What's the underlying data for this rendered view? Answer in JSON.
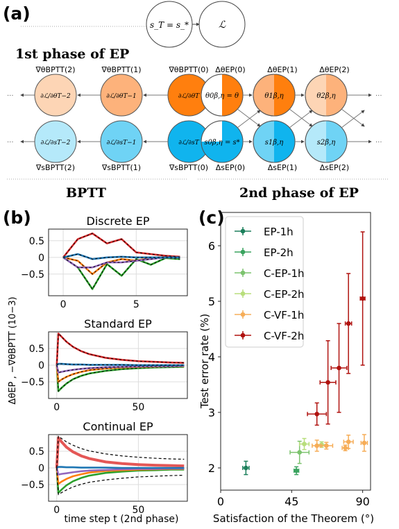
{
  "panels": {
    "a": {
      "label": "(a)",
      "phase1_title": "1st phase of EP",
      "phase1_nodes": [
        "s_T = s_*",
        "ℒ"
      ],
      "bptt_title": "BPTT",
      "phase2_title": "2nd phase of EP",
      "bptt_theta_labels": [
        "∇θBPTT(2)",
        "∇θBPTT(1)",
        "∇θBPTT(0)"
      ],
      "bptt_theta_nodes": [
        "∂ℒ/∂θT−2",
        "∂ℒ/∂θT−1",
        "∂ℒ/∂θT"
      ],
      "bptt_s_labels": [
        "∇sBPTT(2)",
        "∇sBPTT(1)",
        "∇sBPTT(0)"
      ],
      "bptt_s_nodes": [
        "∂ℒ/∂sT−2",
        "∂ℒ/∂sT−1",
        "∂ℒ/∂sT"
      ],
      "ep_theta_labels": [
        "ΔθEP(0)",
        "ΔθEP(1)",
        "ΔθEP(2)"
      ],
      "ep_theta_nodes": [
        "θ0β,η = θ",
        "θ1β,η",
        "θ2β,η"
      ],
      "ep_s_labels": [
        "ΔsEP(0)",
        "ΔsEP(1)",
        "ΔsEP(2)"
      ],
      "ep_s_nodes": [
        "s0β,η = s*",
        "s1β,η",
        "s2β,η"
      ],
      "ellipsis": "···",
      "colors": {
        "orange_dark": "#ff7f0e",
        "orange_mid": "#fdb27b",
        "orange_light": "#fdd5b5",
        "blue_dark": "#10b4ee",
        "blue_mid": "#6fd3f5",
        "blue_light": "#b5e9fa"
      }
    },
    "b": {
      "label": "(b)",
      "ylabel": "ΔθEP , −∇θBPTT (10−3)",
      "xlabel": "time step t (2nd phase)",
      "subplots": [
        {
          "title": "Discrete EP",
          "yticks": [
            "0.5",
            "0",
            "−0.5"
          ],
          "xticks": [
            "0",
            "5"
          ]
        },
        {
          "title": "Standard EP",
          "yticks": [
            "0.5",
            "0",
            "−0.5"
          ],
          "xticks": [
            "0",
            "50"
          ]
        },
        {
          "title": "Continual EP",
          "yticks": [
            "0.5",
            "0",
            "−0.5"
          ],
          "xticks": [
            "0",
            "50"
          ]
        }
      ]
    },
    "c": {
      "label": "(c)",
      "xlabel": "Satisfaction of the Theorem (°)",
      "ylabel": "Test error rate (%)"
    }
  },
  "chart_data": [
    {
      "type": "line",
      "title": "Discrete EP",
      "xlim": [
        -1,
        8.5
      ],
      "ylim": [
        -1.15,
        0.85
      ],
      "yticks": [
        0.5,
        0,
        -0.5
      ],
      "xticks": [
        0,
        5
      ],
      "grid": true,
      "series": [
        {
          "color": "#d62728",
          "x": [
            0,
            1,
            2,
            3,
            4,
            5,
            6,
            7,
            8
          ],
          "y": [
            0,
            0.55,
            0.72,
            0.42,
            0.55,
            0.15,
            0.1,
            0.05,
            0.02
          ]
        },
        {
          "color": "#2ca02c",
          "x": [
            0,
            1,
            2,
            3,
            4,
            5,
            6,
            7,
            8
          ],
          "y": [
            0,
            -0.3,
            -0.95,
            -0.2,
            -0.55,
            -0.05,
            -0.22,
            -0.02,
            -0.05
          ]
        },
        {
          "color": "#ff7f0e",
          "x": [
            0,
            1,
            2,
            3,
            4,
            5,
            6,
            7,
            8
          ],
          "y": [
            0,
            -0.1,
            -0.5,
            -0.15,
            -0.05,
            -0.1,
            0,
            0,
            0
          ]
        },
        {
          "color": "#9467bd",
          "x": [
            0,
            1,
            2,
            3,
            4,
            5,
            6,
            7,
            8
          ],
          "y": [
            0,
            -0.3,
            -0.3,
            -0.15,
            -0.15,
            -0.1,
            -0.05,
            0,
            0
          ]
        },
        {
          "color": "#1f77b4",
          "x": [
            0,
            1,
            2,
            3,
            4,
            5,
            6,
            7,
            8
          ],
          "y": [
            0,
            0.1,
            -0.05,
            0,
            0.02,
            0,
            0,
            0,
            0
          ]
        }
      ]
    },
    {
      "type": "line",
      "title": "Standard EP",
      "xlim": [
        -5,
        80
      ],
      "ylim": [
        -1.0,
        1.0
      ],
      "yticks": [
        0.5,
        0,
        -0.5
      ],
      "xticks": [
        0,
        50
      ],
      "grid": true,
      "series": [
        {
          "color": "#d62728",
          "x": [
            0,
            1,
            3,
            6,
            10,
            15,
            20,
            30,
            40,
            50,
            60,
            70,
            78
          ],
          "y": [
            0,
            0.95,
            0.85,
            0.7,
            0.55,
            0.42,
            0.33,
            0.22,
            0.16,
            0.12,
            0.1,
            0.08,
            0.07
          ]
        },
        {
          "color": "#2ca02c",
          "x": [
            0,
            1,
            3,
            6,
            10,
            15,
            20,
            30,
            40,
            50,
            60,
            70,
            78
          ],
          "y": [
            0,
            -0.78,
            -0.68,
            -0.55,
            -0.42,
            -0.32,
            -0.25,
            -0.17,
            -0.12,
            -0.09,
            -0.07,
            -0.06,
            -0.05
          ]
        },
        {
          "color": "#ff7f0e",
          "x": [
            0,
            1,
            3,
            6,
            10,
            15,
            20,
            30,
            40,
            50,
            60,
            70,
            78
          ],
          "y": [
            0,
            -0.5,
            -0.43,
            -0.35,
            -0.27,
            -0.2,
            -0.15,
            -0.1,
            -0.07,
            -0.05,
            -0.04,
            -0.03,
            -0.03
          ]
        },
        {
          "color": "#9467bd",
          "x": [
            0,
            1,
            3,
            6,
            10,
            15,
            20,
            30,
            40,
            50,
            60,
            70,
            78
          ],
          "y": [
            0,
            -0.22,
            -0.2,
            -0.17,
            -0.14,
            -0.11,
            -0.09,
            -0.06,
            -0.05,
            -0.04,
            -0.03,
            -0.03,
            -0.02
          ]
        },
        {
          "color": "#1f77b4",
          "x": [
            0,
            1,
            3,
            6,
            10,
            15,
            20,
            30,
            40,
            50,
            60,
            70,
            78
          ],
          "y": [
            0,
            0.04,
            0.04,
            0.03,
            0.02,
            0.02,
            0.01,
            0.01,
            0.01,
            0,
            0,
            0,
            0
          ]
        }
      ]
    },
    {
      "type": "line",
      "title": "Continual EP",
      "xlim": [
        -5,
        80
      ],
      "ylim": [
        -1.0,
        1.0
      ],
      "yticks": [
        0.5,
        0,
        -0.5
      ],
      "xticks": [
        0,
        50
      ],
      "grid": true,
      "series": [
        {
          "color": "#e45756",
          "x": [
            0,
            1,
            3,
            6,
            10,
            15,
            20,
            30,
            40,
            50,
            60,
            70,
            78
          ],
          "y": [
            0,
            0.9,
            0.78,
            0.62,
            0.48,
            0.36,
            0.28,
            0.18,
            0.13,
            0.1,
            0.08,
            0.07,
            0.06
          ]
        },
        {
          "color": "#2ca02c",
          "x": [
            0,
            1,
            3,
            6,
            10,
            15,
            20,
            30,
            40,
            50,
            60,
            70,
            78
          ],
          "y": [
            0,
            -0.75,
            -0.65,
            -0.52,
            -0.4,
            -0.3,
            -0.23,
            -0.15,
            -0.11,
            -0.08,
            -0.07,
            -0.05,
            -0.05
          ]
        },
        {
          "color": "#ff7f0e",
          "x": [
            0,
            1,
            3,
            6,
            10,
            15,
            20,
            30,
            40,
            50,
            60,
            70,
            78
          ],
          "y": [
            0,
            -0.48,
            -0.41,
            -0.33,
            -0.25,
            -0.19,
            -0.14,
            -0.09,
            -0.07,
            -0.05,
            -0.04,
            -0.03,
            -0.03
          ]
        },
        {
          "color": "#9467bd",
          "x": [
            0,
            1,
            3,
            6,
            10,
            15,
            20,
            30,
            40,
            50,
            60,
            70,
            78
          ],
          "y": [
            0,
            -0.2,
            -0.18,
            -0.16,
            -0.13,
            -0.1,
            -0.08,
            -0.06,
            -0.04,
            -0.03,
            -0.03,
            -0.02,
            -0.02
          ]
        },
        {
          "color": "#1f77b4",
          "x": [
            0,
            1,
            3,
            6,
            10,
            15,
            20,
            30,
            40,
            50,
            60,
            70,
            78
          ],
          "y": [
            0,
            0.03,
            0.03,
            0.02,
            0.02,
            0.01,
            0.01,
            0.01,
            0,
            0,
            0,
            0,
            0
          ]
        },
        {
          "color": "#000000",
          "dashed": true,
          "x": [
            0,
            1,
            3,
            6,
            10,
            15,
            20,
            30,
            40,
            50,
            60,
            70,
            78
          ],
          "y": [
            0,
            0.95,
            0.88,
            0.78,
            0.68,
            0.58,
            0.51,
            0.42,
            0.36,
            0.32,
            0.29,
            0.27,
            0.26
          ]
        },
        {
          "color": "#000000",
          "dashed": true,
          "x": [
            0,
            1,
            3,
            6,
            10,
            15,
            20,
            30,
            40,
            50,
            60,
            70,
            78
          ],
          "y": [
            0,
            -0.8,
            -0.74,
            -0.66,
            -0.57,
            -0.49,
            -0.43,
            -0.36,
            -0.31,
            -0.27,
            -0.25,
            -0.23,
            -0.22
          ]
        }
      ]
    },
    {
      "type": "scatter",
      "xlabel": "Satisfaction of the Theorem (°)",
      "ylabel": "Test error rate (%)",
      "xlim": [
        0,
        95
      ],
      "ylim": [
        1.6,
        6.6
      ],
      "xticks": [
        0,
        45,
        90
      ],
      "yticks": [
        2,
        3,
        4,
        5,
        6
      ],
      "legend": "upper-left",
      "series": [
        {
          "name": "EP-1h",
          "color": "#1b7f5b",
          "points": [
            {
              "x": 16,
              "y": 2.0,
              "xerr": 2,
              "yerr": 0.12
            }
          ]
        },
        {
          "name": "EP-2h",
          "color": "#3aa35f",
          "points": [
            {
              "x": 48,
              "y": 1.95,
              "xerr": 1.5,
              "yerr": 0.07
            }
          ]
        },
        {
          "name": "C-EP-1h",
          "color": "#7cc36e",
          "points": [
            {
              "x": 50,
              "y": 2.28,
              "xerr": 6,
              "yerr": 0.2
            }
          ]
        },
        {
          "name": "C-EP-2h",
          "color": "#b8de7c",
          "points": [
            {
              "x": 53,
              "y": 2.43,
              "xerr": 3,
              "yerr": 0.1
            },
            {
              "x": 64,
              "y": 2.42,
              "xerr": 3,
              "yerr": 0.05
            }
          ]
        },
        {
          "name": "C-VF-1h",
          "color": "#f6ad58",
          "points": [
            {
              "x": 61,
              "y": 2.4,
              "xerr": 3,
              "yerr": 0.1
            },
            {
              "x": 67,
              "y": 2.4,
              "xerr": 4,
              "yerr": 0.06
            },
            {
              "x": 79,
              "y": 2.36,
              "xerr": 2,
              "yerr": 0.05
            },
            {
              "x": 81,
              "y": 2.47,
              "xerr": 3,
              "yerr": 0.12
            },
            {
              "x": 91,
              "y": 2.45,
              "xerr": 2,
              "yerr": 0.15
            }
          ]
        },
        {
          "name": "C-VF-2h",
          "color": "#b0120f",
          "points": [
            {
              "x": 61,
              "y": 2.97,
              "xerr": 6,
              "yerr": 0.2
            },
            {
              "x": 68,
              "y": 3.54,
              "xerr": 5,
              "yerr": 0.75
            },
            {
              "x": 75,
              "y": 3.8,
              "xerr": 5,
              "yerr": 0.8
            },
            {
              "x": 81,
              "y": 4.6,
              "xerr": 2,
              "yerr": 0.9
            },
            {
              "x": 90,
              "y": 5.05,
              "xerr": 1.5,
              "yerr": 1.2
            }
          ]
        }
      ]
    }
  ]
}
